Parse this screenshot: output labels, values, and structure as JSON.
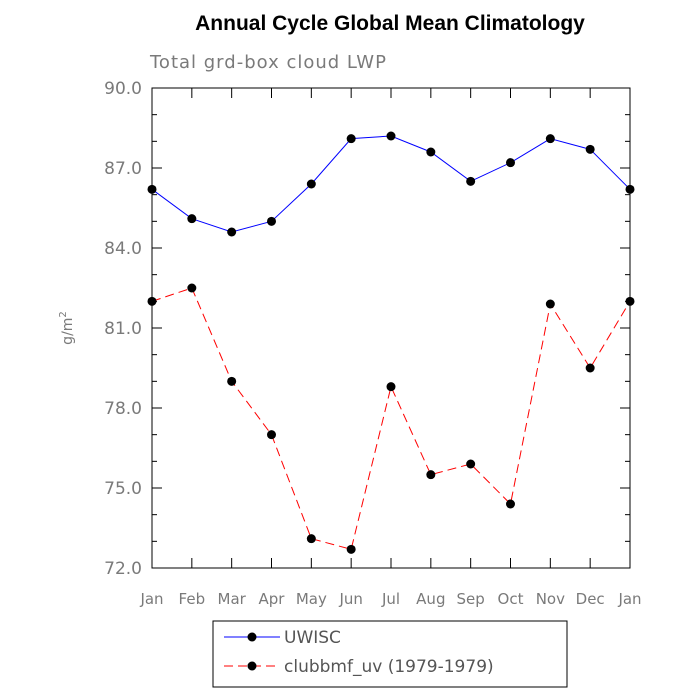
{
  "chart_data": {
    "type": "line",
    "title": "Annual Cycle Global Mean Climatology",
    "subtitle": "Total grd-box cloud LWP",
    "ylabel_base": "g/m",
    "ylabel_sup": "2",
    "xlabel": "",
    "categories": [
      "Jan",
      "Feb",
      "Mar",
      "Apr",
      "May",
      "Jun",
      "Jul",
      "Aug",
      "Sep",
      "Oct",
      "Nov",
      "Dec",
      "Jan"
    ],
    "ylim": [
      72.0,
      90.0
    ],
    "yticks": [
      "72.0",
      "75.0",
      "78.0",
      "81.0",
      "84.0",
      "87.0",
      "90.0"
    ],
    "series": [
      {
        "name": "UWISC",
        "color": "#0000ff",
        "dash": "solid",
        "values": [
          86.2,
          85.1,
          84.6,
          85.0,
          86.4,
          88.1,
          88.2,
          87.6,
          86.5,
          87.2,
          88.1,
          87.7,
          86.2
        ]
      },
      {
        "name": "clubbmf_uv (1979-1979)",
        "color": "#ff0000",
        "dash": "dashed",
        "values": [
          82.0,
          82.5,
          79.0,
          77.0,
          73.1,
          72.7,
          78.8,
          75.5,
          75.9,
          74.4,
          81.9,
          79.5,
          82.0
        ]
      }
    ],
    "grid": false,
    "legend_position": "bottom-center"
  }
}
